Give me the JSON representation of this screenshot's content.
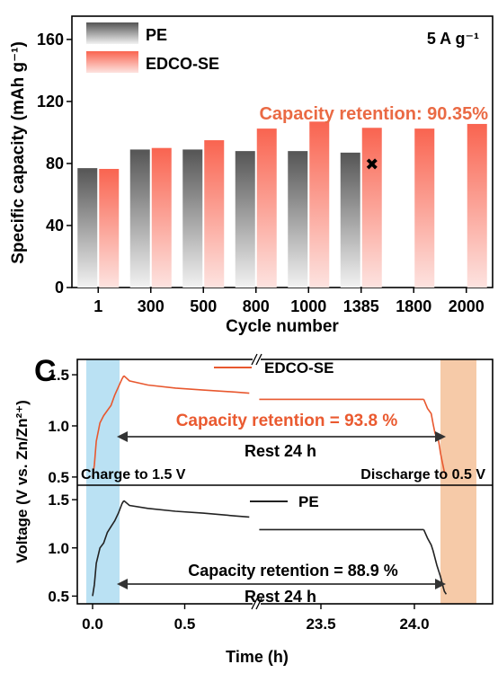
{
  "chart_data": [
    {
      "type": "bar",
      "title": "",
      "xlabel": "Cycle number",
      "ylabel": "Specific capacity (mAh g⁻¹)",
      "ylim": [
        0,
        175
      ],
      "yticks": [
        "0",
        "40",
        "80",
        "120",
        "160"
      ],
      "categories": [
        "1",
        "300",
        "500",
        "800",
        "1000",
        "1385",
        "1800",
        "2000"
      ],
      "series": [
        {
          "name": "PE",
          "values": [
            77,
            89,
            89,
            88,
            88,
            87,
            null,
            null
          ],
          "color": "#6e6e6e"
        },
        {
          "name": "EDCO-SE",
          "values": [
            76.5,
            90,
            95,
            102.5,
            107,
            103,
            102.5,
            105.5
          ],
          "color": "#f96b5a"
        }
      ],
      "annotations": {
        "rate": "5 A g⁻¹",
        "retention": "Capacity retention: 90.35%",
        "failure_marker": {
          "category": "1385",
          "value": 80,
          "symbol": "✖"
        }
      },
      "legend": "top-left"
    },
    {
      "type": "line",
      "panel_label": "C",
      "xlabel": "Time (h)",
      "ylabel": "Voltage (V vs. Zn/Zn²⁺)",
      "xticks": [
        "0.0",
        "0.5",
        "23.5",
        "24.0"
      ],
      "yticks": [
        "0.5",
        "1.0",
        "1.5"
      ],
      "ylim": [
        0.42,
        1.65
      ],
      "axis_break": true,
      "charge_label": "Charge to 1.5 V",
      "discharge_label": "Discharge to 0.5 V",
      "panels": [
        {
          "name": "EDCO-SE",
          "color": "#e8582f",
          "retention": "Capacity retention = 93.8 %",
          "rest": "Rest 24 h",
          "charge": [
            [
              0.0,
              0.5
            ],
            [
              0.01,
              0.62
            ],
            [
              0.02,
              0.85
            ],
            [
              0.04,
              1.03
            ],
            [
              0.06,
              1.1
            ],
            [
              0.08,
              1.15
            ],
            [
              0.1,
              1.2
            ],
            [
              0.12,
              1.3
            ],
            [
              0.14,
              1.38
            ],
            [
              0.16,
              1.46
            ],
            [
              0.17,
              1.49
            ]
          ],
          "rest_first": [
            [
              0.17,
              1.49
            ],
            [
              0.2,
              1.44
            ],
            [
              0.3,
              1.4
            ],
            [
              0.45,
              1.37
            ],
            [
              0.6,
              1.35
            ],
            [
              0.78,
              1.33
            ],
            [
              0.85,
              1.32
            ]
          ],
          "rest_second": [
            [
              23.17,
              1.26
            ],
            [
              24.05,
              1.26
            ]
          ],
          "discharge": [
            [
              24.05,
              1.26
            ],
            [
              24.07,
              1.17
            ],
            [
              24.09,
              1.12
            ],
            [
              24.1,
              1.02
            ],
            [
              24.11,
              0.93
            ],
            [
              24.13,
              0.85
            ],
            [
              24.14,
              0.73
            ],
            [
              24.15,
              0.64
            ],
            [
              24.16,
              0.55
            ],
            [
              24.17,
              0.52
            ]
          ]
        },
        {
          "name": "PE",
          "color": "#222222",
          "retention": "Capacity retention = 88.9 %",
          "rest": "Rest 24 h",
          "charge": [
            [
              0.0,
              0.5
            ],
            [
              0.01,
              0.62
            ],
            [
              0.02,
              0.84
            ],
            [
              0.04,
              1.0
            ],
            [
              0.06,
              1.05
            ],
            [
              0.08,
              1.16
            ],
            [
              0.1,
              1.22
            ],
            [
              0.12,
              1.28
            ],
            [
              0.14,
              1.36
            ],
            [
              0.16,
              1.46
            ],
            [
              0.17,
              1.49
            ]
          ],
          "rest_first": [
            [
              0.17,
              1.49
            ],
            [
              0.2,
              1.44
            ],
            [
              0.3,
              1.41
            ],
            [
              0.45,
              1.38
            ],
            [
              0.6,
              1.36
            ],
            [
              0.78,
              1.33
            ],
            [
              0.85,
              1.32
            ]
          ],
          "rest_second": [
            [
              23.17,
              1.19
            ],
            [
              24.05,
              1.19
            ]
          ],
          "discharge": [
            [
              24.05,
              1.19
            ],
            [
              24.07,
              1.1
            ],
            [
              24.09,
              1.03
            ],
            [
              24.1,
              0.97
            ],
            [
              24.12,
              0.82
            ],
            [
              24.14,
              0.7
            ],
            [
              24.15,
              0.62
            ],
            [
              24.16,
              0.55
            ],
            [
              24.17,
              0.52
            ]
          ]
        }
      ]
    }
  ]
}
